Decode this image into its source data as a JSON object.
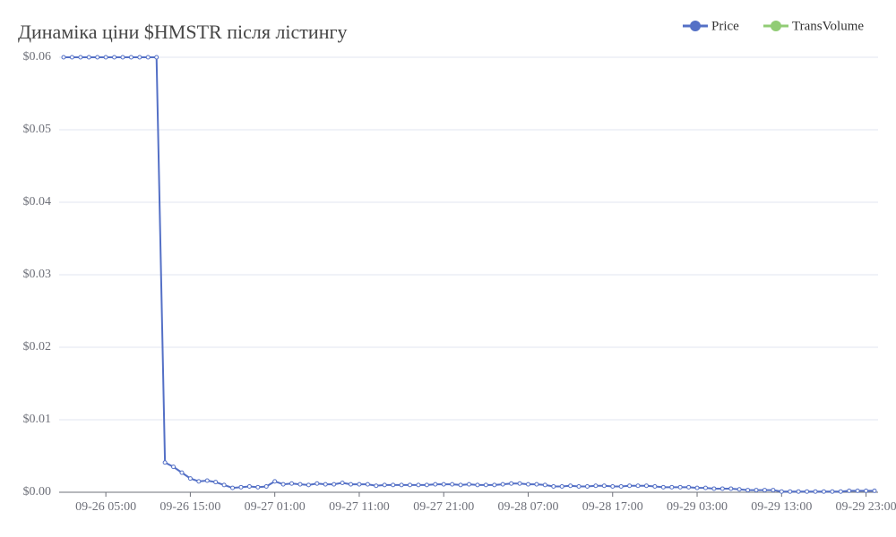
{
  "chart_data": {
    "type": "line",
    "title": "Динаміка ціни $HMSTR після лістингу",
    "categories": [
      null,
      null,
      null,
      null,
      null,
      "09-26 05:00",
      null,
      null,
      null,
      null,
      null,
      null,
      null,
      null,
      null,
      "09-26 15:00",
      null,
      null,
      null,
      null,
      null,
      null,
      null,
      null,
      null,
      "09-27 01:00",
      null,
      null,
      null,
      null,
      null,
      null,
      null,
      null,
      null,
      "09-27 11:00",
      null,
      null,
      null,
      null,
      null,
      null,
      null,
      null,
      null,
      "09-27 21:00",
      null,
      null,
      null,
      null,
      null,
      null,
      null,
      null,
      null,
      "09-28 07:00",
      null,
      null,
      null,
      null,
      null,
      null,
      null,
      null,
      null,
      "09-28 17:00",
      null,
      null,
      null,
      null,
      null,
      null,
      null,
      null,
      null,
      "09-29 03:00",
      null,
      null,
      null,
      null,
      null,
      null,
      null,
      null,
      null,
      "09-29 13:00",
      null,
      null,
      null,
      null,
      null,
      null,
      null,
      null,
      null,
      "09-29 23:00",
      null
    ],
    "series": [
      {
        "name": "Price",
        "color": "#5470c6",
        "values": [
          0.06,
          0.06,
          0.06,
          0.06,
          0.06,
          0.06,
          0.06,
          0.06,
          0.06,
          0.06,
          0.06,
          0.06,
          0.0041,
          0.0035,
          0.0027,
          0.0019,
          0.0015,
          0.0016,
          0.0014,
          0.001,
          0.0006,
          0.0007,
          0.0008,
          0.0007,
          0.0008,
          0.0015,
          0.0011,
          0.0012,
          0.0011,
          0.001,
          0.0012,
          0.0011,
          0.0011,
          0.0013,
          0.0011,
          0.0011,
          0.0011,
          0.0009,
          0.001,
          0.001,
          0.001,
          0.001,
          0.001,
          0.001,
          0.0011,
          0.0011,
          0.0011,
          0.001,
          0.0011,
          0.001,
          0.001,
          0.001,
          0.0011,
          0.0012,
          0.0012,
          0.0011,
          0.0011,
          0.001,
          0.0008,
          0.0008,
          0.0009,
          0.0008,
          0.0008,
          0.0009,
          0.0009,
          0.0008,
          0.0008,
          0.0009,
          0.0009,
          0.0009,
          0.0008,
          0.0007,
          0.0007,
          0.0007,
          0.0007,
          0.0006,
          0.0006,
          0.0005,
          0.0005,
          0.0005,
          0.0004,
          0.0003,
          0.0003,
          0.0003,
          0.0003,
          0.0001,
          0.0001,
          0.0001,
          0.0001,
          0.0001,
          0.0001,
          0.0001,
          0.0001,
          0.0002,
          0.0002,
          0.0002,
          0.0002
        ]
      },
      {
        "name": "TransVolume",
        "color": "#91cc75",
        "values": [
          null,
          null,
          null,
          null,
          null,
          null,
          null,
          null,
          null,
          null,
          null,
          null,
          null,
          null,
          null,
          null,
          null,
          null,
          null,
          null,
          null,
          null,
          null,
          null,
          null,
          null,
          null,
          null,
          null,
          null,
          null,
          null,
          null,
          null,
          null,
          null,
          null,
          null,
          null,
          null,
          null,
          null,
          null,
          null,
          null,
          null,
          null,
          null,
          null,
          null,
          null,
          null,
          null,
          null,
          null,
          null,
          null,
          null,
          null,
          null,
          null,
          null,
          null,
          null,
          null,
          null,
          null,
          null,
          null,
          null,
          null,
          null,
          null,
          null,
          null,
          null,
          null,
          null,
          null,
          null,
          null,
          null,
          null,
          null,
          null,
          null,
          null,
          null,
          null,
          null,
          null,
          null,
          null,
          null,
          null,
          null,
          null
        ]
      }
    ],
    "ylim": [
      0,
      0.06
    ],
    "yticks": [
      {
        "value": 0,
        "label": "$0.00"
      },
      {
        "value": 0.01,
        "label": "$0.01"
      },
      {
        "value": 0.02,
        "label": "$0.02"
      },
      {
        "value": 0.03,
        "label": "$0.03"
      },
      {
        "value": 0.04,
        "label": "$0.04"
      },
      {
        "value": 0.05,
        "label": "$0.05"
      },
      {
        "value": 0.06,
        "label": "$0.06"
      }
    ],
    "grid": true
  }
}
